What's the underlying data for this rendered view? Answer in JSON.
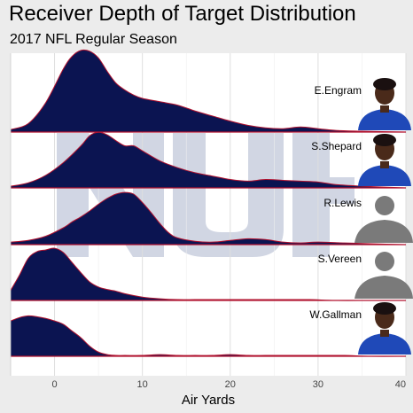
{
  "header": {
    "title": "Receiver Depth of Target Distribution",
    "subtitle": "2017 NFL Regular Season"
  },
  "colors": {
    "fill": "#0b1451",
    "outline": "#b0122f",
    "panel": "#ffffff",
    "grid": "#dedede",
    "watermark": "#c9cfdf",
    "jersey": "#1f49b8",
    "silhouette": "#7a7a7a"
  },
  "chart_data": {
    "type": "ridgeline",
    "title": "Receiver Depth of Target Distribution",
    "subtitle": "2017 NFL Regular Season",
    "xlabel": "Air Yards",
    "ylabel": "",
    "xlim": [
      -5,
      40
    ],
    "xticks": [
      0,
      10,
      20,
      30,
      40
    ],
    "grid": true,
    "series": [
      {
        "name": "E.Engram",
        "photo": "player-photo",
        "x": [
          -5,
          -3,
          -1,
          1,
          2,
          3,
          4,
          5,
          6,
          7,
          8,
          9,
          10,
          12,
          14,
          16,
          18,
          20,
          22,
          24,
          26,
          28,
          30,
          32,
          35,
          40
        ],
        "density": [
          0.03,
          0.1,
          0.35,
          0.75,
          0.9,
          0.97,
          0.96,
          0.88,
          0.72,
          0.58,
          0.5,
          0.44,
          0.4,
          0.36,
          0.32,
          0.25,
          0.19,
          0.13,
          0.08,
          0.05,
          0.04,
          0.06,
          0.04,
          0.02,
          0.01,
          0.0
        ]
      },
      {
        "name": "S.Shepard",
        "photo": "player-photo",
        "x": [
          -5,
          -3,
          -1,
          1,
          3,
          4,
          5,
          6,
          7,
          8,
          9,
          10,
          12,
          14,
          16,
          18,
          20,
          22,
          24,
          26,
          28,
          30,
          32,
          35,
          40
        ],
        "density": [
          0.02,
          0.06,
          0.15,
          0.3,
          0.5,
          0.62,
          0.66,
          0.63,
          0.56,
          0.5,
          0.5,
          0.44,
          0.32,
          0.24,
          0.18,
          0.14,
          0.1,
          0.08,
          0.1,
          0.09,
          0.08,
          0.07,
          0.04,
          0.02,
          0.0
        ]
      },
      {
        "name": "R.Lewis",
        "photo": "silhouette",
        "x": [
          -5,
          -3,
          -1,
          1,
          2,
          3,
          4,
          5,
          6,
          7,
          8,
          9,
          10,
          11,
          12,
          13,
          14,
          16,
          18,
          20,
          22,
          24,
          26,
          28,
          30,
          33,
          36,
          40
        ],
        "density": [
          0.03,
          0.05,
          0.1,
          0.2,
          0.27,
          0.33,
          0.4,
          0.48,
          0.55,
          0.6,
          0.62,
          0.6,
          0.5,
          0.38,
          0.25,
          0.14,
          0.08,
          0.04,
          0.03,
          0.05,
          0.07,
          0.06,
          0.03,
          0.02,
          0.03,
          0.02,
          0.01,
          0.0
        ]
      },
      {
        "name": "S.Vereen",
        "photo": "silhouette",
        "x": [
          -5,
          -4,
          -3,
          -2,
          -1,
          0,
          1,
          2,
          3,
          4,
          5,
          6,
          7,
          8,
          10,
          12,
          14,
          16,
          18,
          20,
          23,
          26,
          29,
          32,
          36,
          40
        ],
        "density": [
          0.12,
          0.3,
          0.5,
          0.58,
          0.6,
          0.62,
          0.57,
          0.45,
          0.33,
          0.22,
          0.16,
          0.13,
          0.11,
          0.08,
          0.04,
          0.02,
          0.01,
          0.01,
          0.01,
          0.01,
          0.01,
          0.01,
          0.01,
          0.0,
          0.0,
          0.0
        ]
      },
      {
        "name": "W.Gallman",
        "photo": "player-photo",
        "x": [
          -5,
          -4,
          -3,
          -2,
          -1,
          0,
          1,
          2,
          3,
          4,
          5,
          6,
          7,
          8,
          10,
          12,
          14,
          16,
          18,
          20,
          22,
          24,
          26,
          28,
          30,
          33,
          36,
          40
        ],
        "density": [
          0.42,
          0.46,
          0.48,
          0.47,
          0.45,
          0.42,
          0.38,
          0.3,
          0.22,
          0.12,
          0.05,
          0.02,
          0.01,
          0.01,
          0.01,
          0.02,
          0.01,
          0.01,
          0.01,
          0.02,
          0.01,
          0.01,
          0.01,
          0.01,
          0.01,
          0.01,
          0.0,
          0.0
        ]
      }
    ]
  }
}
